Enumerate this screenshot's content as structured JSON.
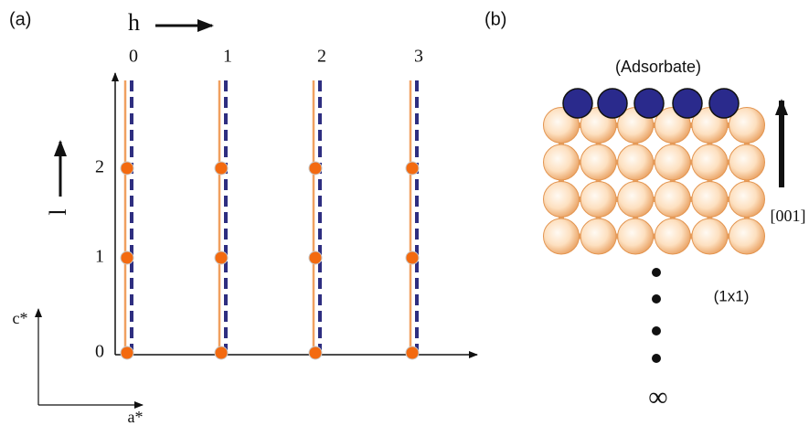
{
  "panel_a": {
    "label": "(a)",
    "h_axis": {
      "label": "h",
      "ticks": [
        "0",
        "1",
        "2",
        "3"
      ]
    },
    "l_axis": {
      "label": "l",
      "ticks": [
        "2",
        "1",
        "0"
      ]
    },
    "reciprocal_axes": {
      "vertical": "c*",
      "horizontal": "a*"
    }
  },
  "panel_b": {
    "label": "(b)",
    "adsorbate_label": "(Adsorbate)",
    "direction_label": "[001]",
    "periodicity_label": "(1x1)",
    "infinity_label": "∞"
  }
}
